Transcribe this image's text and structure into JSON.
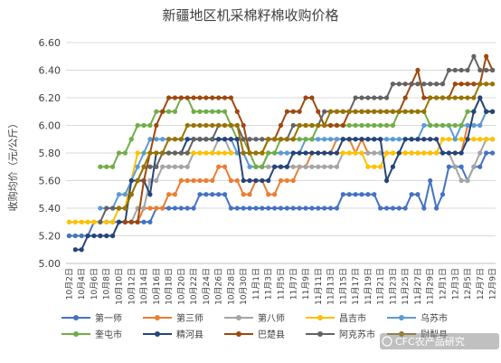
{
  "chart_data": {
    "type": "line",
    "title": "新疆地区机采棉籽棉收购价格",
    "ylabel": "收购均价（元/公斤）",
    "xlabel": "",
    "ylim": [
      5.0,
      6.6
    ],
    "yticks": [
      "5.00",
      "5.20",
      "5.40",
      "5.60",
      "5.80",
      "6.00",
      "6.20",
      "6.40",
      "6.60"
    ],
    "x": [
      "10月2日",
      "10月3日",
      "10月4日",
      "10月5日",
      "10月6日",
      "10月7日",
      "10月8日",
      "10月9日",
      "10月10日",
      "10月11日",
      "10月12日",
      "10月13日",
      "10月14日",
      "10月15日",
      "10月16日",
      "10月17日",
      "10月18日",
      "10月19日",
      "10月20日",
      "10月21日",
      "10月22日",
      "10月23日",
      "10月24日",
      "10月25日",
      "10月26日",
      "10月27日",
      "10月28日",
      "10月29日",
      "10月30日",
      "10月31日",
      "11月1日",
      "11月2日",
      "11月3日",
      "11月4日",
      "11月5日",
      "11月6日",
      "11月7日",
      "11月8日",
      "11月9日",
      "11月10日",
      "11月11日",
      "11月12日",
      "11月13日",
      "11月14日",
      "11月15日",
      "11月16日",
      "11月17日",
      "11月18日",
      "11月19日",
      "11月20日",
      "11月21日",
      "11月22日",
      "11月23日",
      "11月24日",
      "11月25日",
      "11月26日",
      "11月27日",
      "11月28日",
      "11月29日",
      "11月30日",
      "12月1日",
      "12月2日",
      "12月3日",
      "12月4日",
      "12月5日",
      "12月6日",
      "12月7日",
      "12月8日",
      "12月9日"
    ],
    "xticks": [
      "10月2日",
      "10月4日",
      "10月6日",
      "10月8日",
      "10月10日",
      "10月12日",
      "10月14日",
      "10月16日",
      "10月18日",
      "10月20日",
      "10月22日",
      "10月24日",
      "10月26日",
      "10月28日",
      "10月30日",
      "11月1日",
      "11月3日",
      "11月5日",
      "11月7日",
      "11月9日",
      "11月11日",
      "11月13日",
      "11月15日",
      "11月17日",
      "11月19日",
      "11月21日",
      "11月23日",
      "11月25日",
      "11月27日",
      "11月29日",
      "12月1日",
      "12月3日",
      "12月5日",
      "12月7日",
      "12月9日"
    ],
    "legend_placement": "bottom",
    "grid": true,
    "series": [
      {
        "name": "第一师",
        "color": "#4472c4",
        "values": [
          5.2,
          5.2,
          5.2,
          5.2,
          5.3,
          5.3,
          5.3,
          5.3,
          5.3,
          5.3,
          5.3,
          5.3,
          5.3,
          5.3,
          5.4,
          5.4,
          5.4,
          5.4,
          5.4,
          5.4,
          5.4,
          5.5,
          5.5,
          5.5,
          5.5,
          5.5,
          5.4,
          5.4,
          5.4,
          5.4,
          5.4,
          5.4,
          5.4,
          5.4,
          5.4,
          5.4,
          5.4,
          5.4,
          5.4,
          5.4,
          5.4,
          5.4,
          5.4,
          5.4,
          5.5,
          5.5,
          5.5,
          5.5,
          5.5,
          5.5,
          5.4,
          5.4,
          5.4,
          5.4,
          5.4,
          5.5,
          5.5,
          5.4,
          5.6,
          5.4,
          5.5,
          5.7,
          5.7,
          5.7,
          5.6,
          5.7,
          5.7,
          5.8,
          5.8
        ]
      },
      {
        "name": "第三师",
        "color": "#ed7d31",
        "values": [
          null,
          null,
          null,
          null,
          null,
          null,
          null,
          null,
          null,
          5.3,
          5.3,
          5.3,
          5.4,
          5.4,
          5.4,
          5.4,
          5.5,
          5.5,
          5.6,
          5.6,
          5.6,
          5.6,
          5.6,
          5.6,
          5.7,
          5.7,
          5.6,
          5.6,
          5.5,
          5.5,
          5.6,
          5.6,
          5.5,
          5.5,
          5.6,
          5.6,
          5.6,
          5.7,
          5.7,
          5.8,
          5.8,
          5.8,
          5.8,
          5.9,
          5.9,
          5.9,
          5.8,
          5.9,
          5.8,
          5.8,
          5.8,
          5.8,
          5.8,
          5.8,
          5.8,
          5.8,
          5.8,
          5.8,
          5.8,
          5.8,
          5.8,
          5.8,
          5.8,
          5.8,
          6.0,
          6.0,
          6.0,
          6.1,
          6.1
        ]
      },
      {
        "name": "第八师",
        "color": "#a5a5a5",
        "values": [
          null,
          null,
          null,
          null,
          null,
          5.2,
          5.2,
          5.2,
          5.3,
          5.3,
          5.3,
          5.4,
          5.4,
          5.6,
          5.6,
          5.7,
          5.7,
          5.7,
          5.7,
          5.7,
          5.8,
          5.8,
          5.8,
          5.8,
          5.9,
          5.9,
          5.8,
          5.8,
          5.8,
          5.7,
          5.7,
          5.7,
          5.7,
          5.7,
          5.7,
          5.7,
          5.7,
          5.7,
          5.7,
          5.7,
          5.7,
          5.7,
          5.7,
          5.7,
          5.8,
          5.8,
          5.8,
          5.8,
          5.8,
          5.8,
          5.8,
          5.8,
          5.8,
          5.8,
          5.8,
          5.8,
          5.8,
          5.8,
          5.8,
          5.8,
          5.8,
          5.8,
          5.7,
          5.6,
          5.6,
          5.7,
          5.8,
          5.9,
          5.9
        ]
      },
      {
        "name": "昌吉市",
        "color": "#ffc000",
        "values": [
          5.3,
          5.3,
          5.3,
          5.3,
          5.3,
          5.3,
          5.3,
          5.3,
          5.4,
          5.4,
          5.6,
          5.8,
          5.8,
          5.8,
          5.8,
          5.8,
          5.8,
          5.8,
          5.8,
          5.8,
          5.8,
          5.8,
          5.8,
          5.8,
          5.8,
          5.8,
          5.8,
          5.8,
          5.8,
          5.8,
          5.8,
          5.8,
          5.8,
          5.8,
          5.8,
          5.8,
          5.8,
          5.8,
          5.8,
          5.8,
          5.8,
          5.8,
          5.8,
          5.8,
          5.8,
          5.8,
          5.8,
          5.8,
          5.7,
          5.7,
          5.7,
          5.8,
          5.8,
          5.8,
          5.8,
          5.8,
          5.8,
          5.8,
          5.8,
          5.8,
          5.9,
          5.9,
          5.9,
          5.9,
          5.9,
          5.9,
          5.9,
          5.9,
          5.9
        ]
      },
      {
        "name": "乌苏市",
        "color": "#5b9bd5",
        "values": [
          null,
          null,
          null,
          null,
          null,
          5.4,
          5.4,
          5.4,
          5.5,
          5.5,
          5.6,
          5.7,
          5.8,
          5.9,
          5.9,
          5.9,
          5.9,
          5.9,
          5.9,
          5.9,
          5.9,
          5.9,
          5.9,
          5.9,
          5.9,
          5.9,
          5.9,
          5.8,
          5.8,
          5.7,
          5.7,
          5.7,
          5.8,
          5.8,
          5.8,
          5.8,
          5.8,
          5.8,
          5.9,
          5.9,
          5.9,
          5.9,
          5.9,
          5.9,
          5.9,
          5.9,
          5.9,
          5.9,
          5.9,
          5.9,
          5.9,
          5.9,
          5.9,
          5.9,
          5.9,
          5.9,
          5.9,
          6.0,
          6.0,
          6.0,
          6.0,
          6.0,
          5.9,
          6.0,
          6.0,
          6.0,
          6.0,
          6.1,
          6.1
        ]
      },
      {
        "name": "奎屯市",
        "color": "#70ad47",
        "values": [
          null,
          null,
          null,
          null,
          null,
          5.7,
          5.7,
          5.7,
          5.8,
          5.8,
          5.9,
          6.0,
          6.0,
          6.0,
          6.1,
          6.1,
          6.1,
          6.1,
          6.2,
          6.2,
          6.1,
          6.1,
          6.1,
          6.1,
          6.1,
          6.1,
          6.0,
          5.9,
          5.9,
          5.8,
          5.7,
          5.7,
          5.8,
          5.8,
          5.9,
          5.9,
          5.9,
          5.9,
          5.9,
          5.9,
          6.0,
          6.0,
          6.0,
          6.0,
          6.0,
          6.0,
          6.0,
          6.0,
          6.0,
          6.0,
          6.0,
          6.0,
          6.0,
          6.1,
          6.1,
          6.1,
          6.1,
          6.1,
          6.0,
          6.0,
          6.0,
          6.0,
          6.0,
          6.0,
          6.1,
          6.1,
          6.2,
          6.1,
          6.1
        ]
      },
      {
        "name": "精河县",
        "color": "#264478",
        "values": [
          null,
          5.1,
          5.1,
          5.2,
          5.2,
          5.2,
          5.2,
          5.2,
          5.3,
          5.3,
          5.6,
          5.6,
          5.6,
          5.5,
          5.8,
          5.8,
          5.8,
          5.8,
          5.8,
          5.9,
          5.9,
          5.9,
          5.9,
          5.9,
          5.9,
          5.9,
          5.9,
          5.9,
          5.6,
          5.6,
          5.6,
          5.6,
          5.6,
          5.7,
          5.7,
          5.7,
          5.8,
          5.8,
          5.8,
          5.8,
          5.8,
          5.8,
          5.8,
          5.8,
          5.9,
          5.9,
          5.9,
          5.9,
          5.9,
          5.9,
          5.9,
          5.6,
          5.7,
          5.8,
          5.9,
          5.9,
          5.9,
          5.9,
          5.9,
          5.9,
          5.8,
          5.8,
          5.8,
          5.8,
          5.9,
          6.1,
          6.2,
          6.1,
          6.1
        ]
      },
      {
        "name": "巴楚县",
        "color": "#9e480e",
        "values": [
          null,
          null,
          null,
          null,
          null,
          null,
          null,
          null,
          null,
          5.3,
          5.3,
          5.3,
          5.6,
          5.8,
          6.0,
          6.1,
          6.2,
          6.2,
          6.2,
          6.2,
          6.2,
          6.2,
          6.2,
          6.2,
          6.2,
          6.2,
          6.2,
          6.1,
          6.0,
          5.8,
          5.8,
          5.8,
          5.9,
          5.9,
          6.0,
          6.1,
          6.1,
          6.1,
          6.2,
          6.2,
          6.1,
          6.0,
          6.0,
          6.0,
          6.0,
          6.1,
          6.1,
          6.1,
          6.1,
          6.1,
          6.1,
          6.1,
          6.1,
          6.1,
          6.2,
          6.3,
          6.4,
          6.2,
          6.2,
          6.2,
          6.2,
          6.2,
          6.3,
          6.3,
          6.3,
          6.3,
          6.3,
          6.5,
          6.4
        ]
      },
      {
        "name": "阿克苏市",
        "color": "#636363",
        "values": [
          null,
          null,
          null,
          null,
          null,
          5.3,
          5.4,
          5.4,
          5.4,
          5.4,
          5.5,
          5.6,
          5.7,
          5.7,
          5.7,
          5.8,
          5.8,
          5.8,
          5.8,
          5.8,
          5.9,
          5.9,
          5.9,
          5.9,
          6.0,
          6.0,
          6.0,
          6.0,
          5.9,
          5.9,
          5.9,
          5.9,
          5.9,
          5.9,
          5.9,
          5.9,
          6.0,
          6.0,
          6.0,
          6.0,
          6.0,
          6.1,
          6.1,
          6.1,
          6.1,
          6.1,
          6.2,
          6.2,
          6.2,
          6.2,
          6.2,
          6.2,
          6.3,
          6.3,
          6.3,
          6.3,
          6.3,
          6.3,
          6.3,
          6.3,
          6.3,
          6.4,
          6.4,
          6.4,
          6.4,
          6.5,
          6.4,
          6.4,
          6.4
        ]
      },
      {
        "name": "尉犁县",
        "color": "#997300",
        "values": [
          null,
          null,
          null,
          null,
          null,
          null,
          null,
          null,
          5.4,
          5.4,
          5.5,
          5.6,
          5.7,
          5.8,
          5.8,
          5.8,
          5.9,
          5.9,
          5.9,
          6.0,
          6.0,
          6.0,
          6.0,
          6.0,
          6.0,
          6.0,
          6.0,
          6.0,
          5.8,
          5.8,
          5.8,
          5.8,
          5.9,
          5.9,
          5.9,
          5.9,
          5.9,
          6.0,
          6.0,
          6.0,
          6.0,
          6.0,
          6.1,
          6.1,
          6.1,
          6.1,
          6.1,
          6.1,
          6.1,
          6.1,
          6.1,
          6.1,
          6.1,
          6.1,
          6.1,
          6.1,
          6.1,
          6.1,
          6.2,
          6.2,
          6.2,
          6.2,
          6.2,
          6.2,
          6.2,
          6.2,
          6.3,
          6.3,
          6.3
        ]
      }
    ]
  },
  "watermark": "CFC农产品研究"
}
